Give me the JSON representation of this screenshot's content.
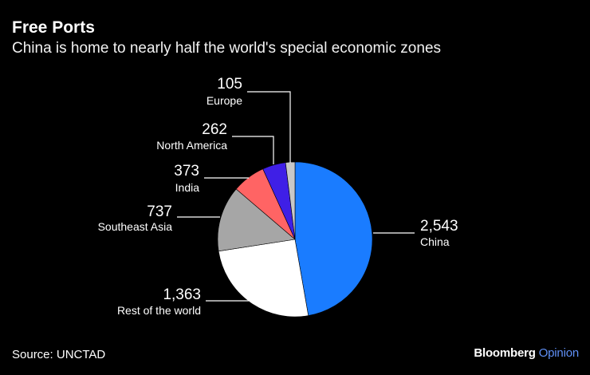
{
  "header": {
    "title": "Free Ports",
    "subtitle": "China is home to nearly half the world's special economic zones"
  },
  "footer": {
    "source": "Source: UNCTAD",
    "brand_main": "Bloomberg",
    "brand_sub": "Opinion"
  },
  "colors": {
    "background": "#000000",
    "China": "#1a7cff",
    "Rest of the world": "#ffffff",
    "Southeast Asia": "#a6a6a6",
    "India": "#ff6464",
    "North America": "#3f1fe6",
    "Europe": "#c8c8c8",
    "leader": "#ffffff"
  },
  "chart_data": {
    "type": "pie",
    "title": "Free Ports",
    "subtitle": "China is home to nearly half the world's special economic zones",
    "slices": [
      {
        "label": "China",
        "value": 2543,
        "value_label": "2,543"
      },
      {
        "label": "Rest of the world",
        "value": 1363,
        "value_label": "1,363"
      },
      {
        "label": "Southeast Asia",
        "value": 737,
        "value_label": "737"
      },
      {
        "label": "India",
        "value": 373,
        "value_label": "373"
      },
      {
        "label": "North America",
        "value": 262,
        "value_label": "262"
      },
      {
        "label": "Europe",
        "value": 105,
        "value_label": "105"
      }
    ],
    "start": "12 o'clock",
    "direction": "clockwise",
    "legend": "none"
  }
}
